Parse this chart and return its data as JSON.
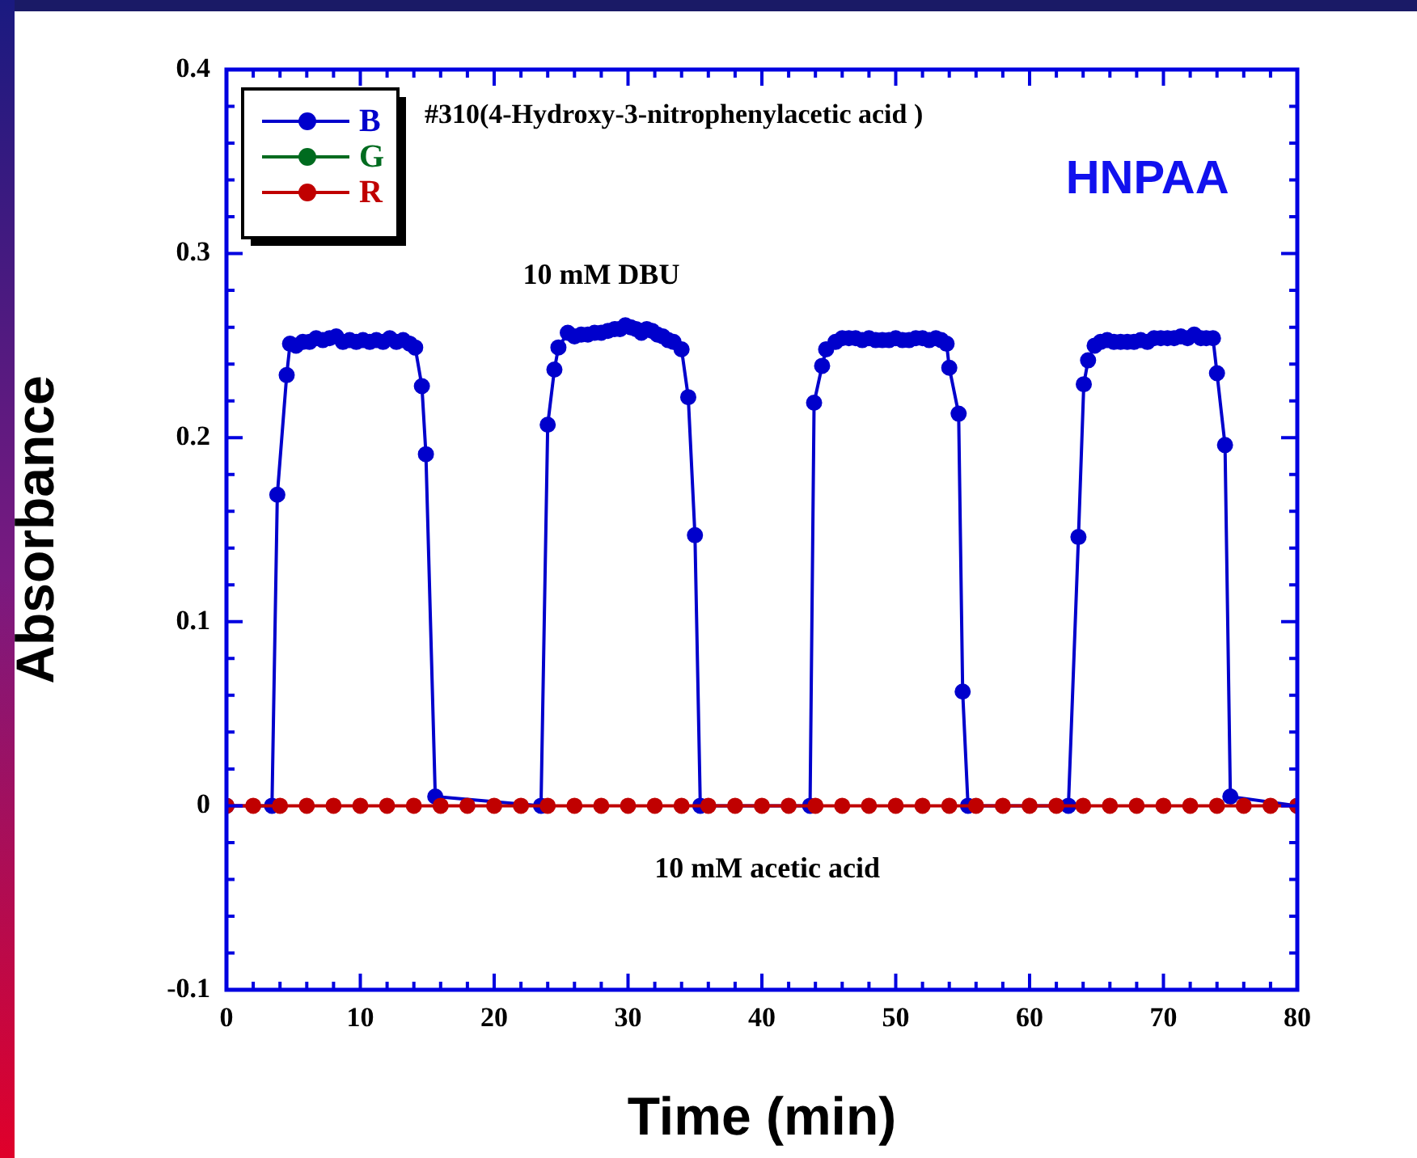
{
  "chart_data": {
    "type": "line",
    "xlabel": "Time (min)",
    "ylabel": "Absorbance",
    "annotations": [
      "#310(4-Hydroxy-3-nitrophenylacetic acid )",
      "HNPAA",
      "10 mM DBU",
      "10 mM acetic acid"
    ],
    "xlim": [
      0,
      80
    ],
    "ylim": [
      -0.1,
      0.4
    ],
    "xticks": [
      0,
      {
        "value": 2,
        "label": null
      },
      {
        "value": 4,
        "label": null
      },
      {
        "value": 6,
        "label": null
      },
      {
        "value": 8,
        "label": null
      },
      10,
      {
        "value": 12,
        "label": null
      },
      {
        "value": 14,
        "label": null
      },
      {
        "value": 16,
        "label": null
      },
      {
        "value": 18,
        "label": null
      },
      20,
      {
        "value": 22,
        "label": null
      },
      {
        "value": 24,
        "label": null
      },
      {
        "value": 26,
        "label": null
      },
      {
        "value": 28,
        "label": null
      },
      30,
      {
        "value": 32,
        "label": null
      },
      {
        "value": 34,
        "label": null
      },
      {
        "value": 36,
        "label": null
      },
      {
        "value": 38,
        "label": null
      },
      40,
      {
        "value": 42,
        "label": null
      },
      {
        "value": 44,
        "label": null
      },
      {
        "value": 46,
        "label": null
      },
      {
        "value": 48,
        "label": null
      },
      50,
      {
        "value": 52,
        "label": null
      },
      {
        "value": 54,
        "label": null
      },
      {
        "value": 56,
        "label": null
      },
      {
        "value": 58,
        "label": null
      },
      60,
      {
        "value": 62,
        "label": null
      },
      {
        "value": 64,
        "label": null
      },
      {
        "value": 66,
        "label": null
      },
      {
        "value": 68,
        "label": null
      },
      70,
      {
        "value": 72,
        "label": null
      },
      {
        "value": 74,
        "label": null
      },
      {
        "value": 76,
        "label": null
      },
      {
        "value": 78,
        "label": null
      },
      80
    ],
    "yticks": [
      -0.1,
      {
        "value": -0.08,
        "label": null
      },
      {
        "value": -0.06,
        "label": null
      },
      {
        "value": -0.04,
        "label": null
      },
      {
        "value": -0.02,
        "label": null
      },
      0,
      {
        "value": 0.02,
        "label": null
      },
      {
        "value": 0.04,
        "label": null
      },
      {
        "value": 0.06,
        "label": null
      },
      {
        "value": 0.08,
        "label": null
      },
      0.1,
      {
        "value": 0.12,
        "label": null
      },
      {
        "value": 0.14,
        "label": null
      },
      {
        "value": 0.16,
        "label": null
      },
      {
        "value": 0.18,
        "label": null
      },
      0.2,
      {
        "value": 0.22,
        "label": null
      },
      {
        "value": 0.24,
        "label": null
      },
      {
        "value": 0.26,
        "label": null
      },
      {
        "value": 0.28,
        "label": null
      },
      0.3,
      {
        "value": 0.32,
        "label": null
      },
      {
        "value": 0.34,
        "label": null
      },
      {
        "value": 0.36,
        "label": null
      },
      {
        "value": 0.38,
        "label": null
      },
      0.4
    ],
    "grid": false,
    "legend": "top left",
    "marker": "circle",
    "line_style": "solid",
    "series": [
      {
        "name": "B",
        "color": "#0000cc",
        "x": [
          0,
          3.4,
          3.8,
          4.5,
          4.75,
          5.2,
          5.7,
          6.2,
          6.7,
          7.2,
          7.7,
          8.2,
          8.7,
          9.2,
          9.7,
          10.2,
          10.7,
          11.2,
          11.7,
          12.2,
          12.7,
          13.2,
          13.7,
          14.1,
          14.6,
          14.9,
          15.6,
          23.5,
          24.0,
          24.5,
          24.8,
          25.5,
          26.0,
          26.5,
          27.0,
          27.5,
          28.0,
          28.5,
          29.0,
          29.4,
          29.8,
          30.2,
          30.6,
          31.0,
          31.4,
          31.8,
          32.2,
          32.6,
          33.0,
          33.4,
          34.0,
          34.5,
          35.0,
          35.4,
          43.6,
          43.9,
          44.5,
          44.8,
          45.5,
          46.0,
          46.5,
          47.0,
          47.5,
          48.0,
          48.5,
          49.0,
          49.5,
          50.0,
          50.5,
          51.0,
          51.5,
          52.0,
          52.5,
          53.0,
          53.4,
          53.8,
          54.0,
          54.7,
          55.0,
          55.4,
          62.9,
          63.65,
          64.05,
          64.37,
          64.86,
          65.3,
          65.8,
          66.3,
          66.8,
          67.3,
          67.8,
          68.3,
          68.8,
          69.3,
          69.8,
          70.3,
          70.8,
          71.3,
          71.8,
          72.3,
          72.8,
          73.2,
          73.7,
          74.0,
          74.6,
          75.0,
          80
        ],
        "values": [
          0,
          0,
          0.169,
          0.234,
          0.251,
          0.25,
          0.252,
          0.252,
          0.254,
          0.253,
          0.254,
          0.255,
          0.252,
          0.253,
          0.252,
          0.253,
          0.252,
          0.253,
          0.252,
          0.254,
          0.252,
          0.253,
          0.251,
          0.249,
          0.228,
          0.191,
          0.005,
          0,
          0.207,
          0.237,
          0.249,
          0.257,
          0.255,
          0.256,
          0.256,
          0.257,
          0.257,
          0.258,
          0.259,
          0.259,
          0.261,
          0.26,
          0.259,
          0.257,
          0.259,
          0.258,
          0.256,
          0.255,
          0.253,
          0.252,
          0.248,
          0.222,
          0.147,
          0,
          0,
          0.219,
          0.239,
          0.248,
          0.252,
          0.254,
          0.254,
          0.254,
          0.253,
          0.254,
          0.253,
          0.253,
          0.253,
          0.254,
          0.253,
          0.253,
          0.254,
          0.254,
          0.253,
          0.254,
          0.253,
          0.251,
          0.238,
          0.213,
          0.062,
          0,
          0,
          0.146,
          0.229,
          0.242,
          0.25,
          0.252,
          0.253,
          0.252,
          0.252,
          0.252,
          0.252,
          0.253,
          0.252,
          0.254,
          0.254,
          0.254,
          0.254,
          0.255,
          0.254,
          0.256,
          0.254,
          0.254,
          0.254,
          0.235,
          0.196,
          0.005,
          0
        ]
      },
      {
        "name": "G",
        "color": "#006b1f"
      },
      {
        "name": "R",
        "color": "#c00000",
        "x": [
          0,
          2,
          4,
          6,
          8,
          10,
          12,
          14,
          16,
          18,
          20,
          22,
          24,
          26,
          28,
          30,
          32,
          34,
          36,
          38,
          40,
          42,
          44,
          46,
          48,
          50,
          52,
          54,
          56,
          58,
          60,
          62,
          64,
          66,
          68,
          70,
          72,
          74,
          76,
          78,
          80
        ],
        "values": [
          0,
          0,
          0,
          0,
          0,
          0,
          0,
          0,
          0,
          0,
          0,
          0,
          0,
          0,
          0,
          0,
          0,
          0,
          0,
          0,
          0,
          0,
          0,
          0,
          0,
          0,
          0,
          0,
          0,
          0,
          0,
          0,
          0,
          0,
          0,
          0,
          0,
          0,
          0,
          0,
          0
        ]
      }
    ]
  }
}
